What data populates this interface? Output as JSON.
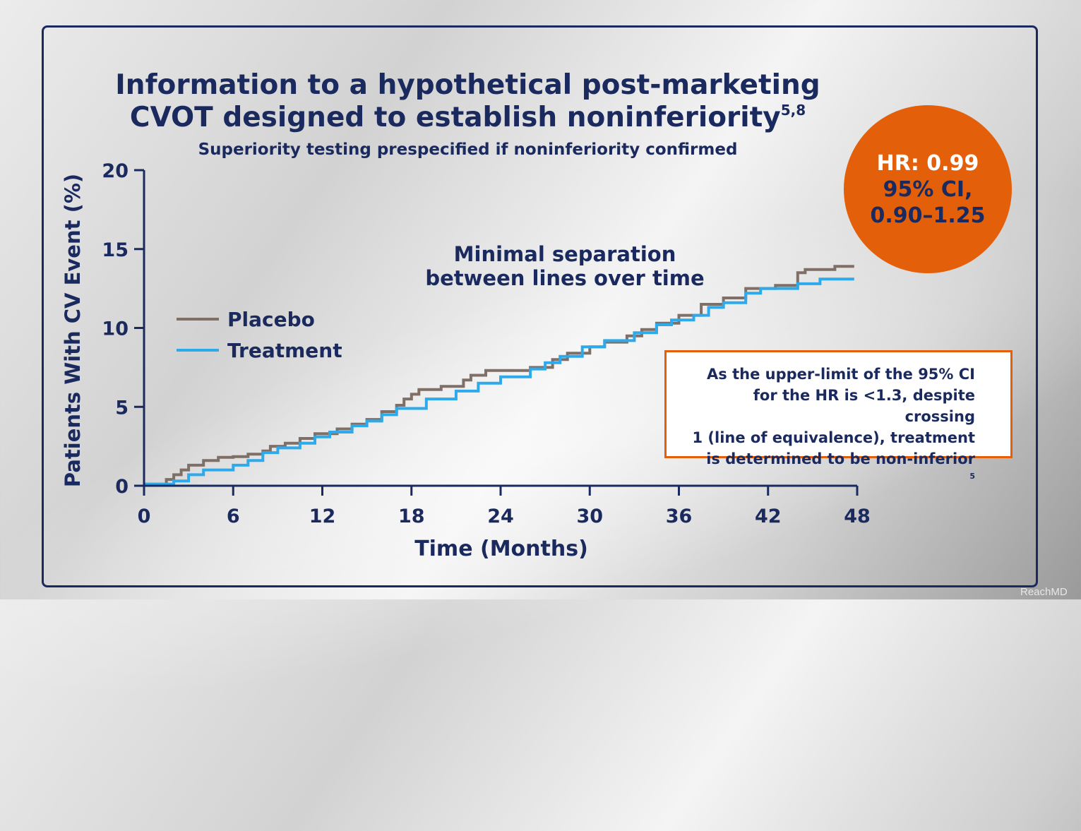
{
  "title": {
    "line1": "Information to a hypothetical post-marketing",
    "line2": "CVOT designed to establish noninferiority",
    "line2_sup": "5,8"
  },
  "subtitle": "Superiority testing prespecified if noninferiority confirmed",
  "annotation": {
    "line1": "Minimal separation",
    "line2": "between lines over time"
  },
  "hr_badge": {
    "line1": "HR: 0.99",
    "line2": "95% CI,",
    "line3": "0.90–1.25",
    "color": "#e35f0a",
    "text_color": "#1b2a5e"
  },
  "note": {
    "line1": "As the upper-limit of the 95% CI",
    "line2": "for the HR is <1.3, despite crossing",
    "line3": "1 (line of equivalence), treatment",
    "line4": "is determined to be non-inferior",
    "line4_sup": "5"
  },
  "watermark": "ReachMD",
  "colors": {
    "navy": "#1b2a5e",
    "accent_orange": "#e35f0a",
    "placebo": "#7f6f67",
    "treatment": "#2eaaeb"
  },
  "chart_data": {
    "type": "line",
    "step": true,
    "xlabel": "Time (Months)",
    "ylabel": "Patients With CV Event (%)",
    "xlim": [
      0,
      48
    ],
    "ylim": [
      0,
      20
    ],
    "xticks": [
      "0",
      "6",
      "12",
      "18",
      "24",
      "30",
      "36",
      "42",
      "48"
    ],
    "yticks": [
      "0",
      "5",
      "10",
      "15",
      "20"
    ],
    "legend_position": "left",
    "series": [
      {
        "name": "Placebo",
        "color": "#7f6f67",
        "points": [
          [
            0,
            0.1
          ],
          [
            1.5,
            0.1
          ],
          [
            1.5,
            0.4
          ],
          [
            2.0,
            0.4
          ],
          [
            2.0,
            0.7
          ],
          [
            2.5,
            0.7
          ],
          [
            2.5,
            1.0
          ],
          [
            3.0,
            1.0
          ],
          [
            3.0,
            1.3
          ],
          [
            4.0,
            1.3
          ],
          [
            4.0,
            1.6
          ],
          [
            5.0,
            1.6
          ],
          [
            5.0,
            1.8
          ],
          [
            6.0,
            1.8
          ],
          [
            6.0,
            1.85
          ],
          [
            7.0,
            1.85
          ],
          [
            7.0,
            2.0
          ],
          [
            8.0,
            2.0
          ],
          [
            8.0,
            2.2
          ],
          [
            8.5,
            2.2
          ],
          [
            8.5,
            2.5
          ],
          [
            9.5,
            2.5
          ],
          [
            9.5,
            2.7
          ],
          [
            10.5,
            2.7
          ],
          [
            10.5,
            3.0
          ],
          [
            11.5,
            3.0
          ],
          [
            11.5,
            3.3
          ],
          [
            13.0,
            3.3
          ],
          [
            13.0,
            3.6
          ],
          [
            14.0,
            3.6
          ],
          [
            14.0,
            3.9
          ],
          [
            15.0,
            3.9
          ],
          [
            15.0,
            4.2
          ],
          [
            16.0,
            4.2
          ],
          [
            16.0,
            4.7
          ],
          [
            17.0,
            4.7
          ],
          [
            17.0,
            5.1
          ],
          [
            17.5,
            5.1
          ],
          [
            17.5,
            5.5
          ],
          [
            18.0,
            5.5
          ],
          [
            18.0,
            5.8
          ],
          [
            18.5,
            5.8
          ],
          [
            18.5,
            6.1
          ],
          [
            20.0,
            6.1
          ],
          [
            20.0,
            6.3
          ],
          [
            21.5,
            6.3
          ],
          [
            21.5,
            6.7
          ],
          [
            22.0,
            6.7
          ],
          [
            22.0,
            7.0
          ],
          [
            23.0,
            7.0
          ],
          [
            23.0,
            7.3
          ],
          [
            26.0,
            7.3
          ],
          [
            26.0,
            7.5
          ],
          [
            27.5,
            7.5
          ],
          [
            27.5,
            8.0
          ],
          [
            28.5,
            8.0
          ],
          [
            28.5,
            8.4
          ],
          [
            30.0,
            8.4
          ],
          [
            30.0,
            8.8
          ],
          [
            31.0,
            8.8
          ],
          [
            31.0,
            9.1
          ],
          [
            32.5,
            9.1
          ],
          [
            32.5,
            9.5
          ],
          [
            33.5,
            9.5
          ],
          [
            33.5,
            9.9
          ],
          [
            34.5,
            9.9
          ],
          [
            34.5,
            10.3
          ],
          [
            36.0,
            10.3
          ],
          [
            36.0,
            10.8
          ],
          [
            37.5,
            10.8
          ],
          [
            37.5,
            11.5
          ],
          [
            39.0,
            11.5
          ],
          [
            39.0,
            11.9
          ],
          [
            40.5,
            11.9
          ],
          [
            40.5,
            12.5
          ],
          [
            42.5,
            12.5
          ],
          [
            42.5,
            12.7
          ],
          [
            44.0,
            12.7
          ],
          [
            44.0,
            13.5
          ],
          [
            44.5,
            13.5
          ],
          [
            44.5,
            13.7
          ],
          [
            46.5,
            13.7
          ],
          [
            46.5,
            13.9
          ],
          [
            47.8,
            13.9
          ]
        ]
      },
      {
        "name": "Treatment",
        "color": "#2eaaeb",
        "points": [
          [
            0,
            0.1
          ],
          [
            2.0,
            0.1
          ],
          [
            2.0,
            0.3
          ],
          [
            3.0,
            0.3
          ],
          [
            3.0,
            0.7
          ],
          [
            4.0,
            0.7
          ],
          [
            4.0,
            1.0
          ],
          [
            6.0,
            1.0
          ],
          [
            6.0,
            1.3
          ],
          [
            7.0,
            1.3
          ],
          [
            7.0,
            1.6
          ],
          [
            8.0,
            1.6
          ],
          [
            8.0,
            2.1
          ],
          [
            9.0,
            2.1
          ],
          [
            9.0,
            2.4
          ],
          [
            10.5,
            2.4
          ],
          [
            10.5,
            2.7
          ],
          [
            11.5,
            2.7
          ],
          [
            11.5,
            3.1
          ],
          [
            12.5,
            3.1
          ],
          [
            12.5,
            3.4
          ],
          [
            14.0,
            3.4
          ],
          [
            14.0,
            3.8
          ],
          [
            15.0,
            3.8
          ],
          [
            15.0,
            4.1
          ],
          [
            16.0,
            4.1
          ],
          [
            16.0,
            4.5
          ],
          [
            17.0,
            4.5
          ],
          [
            17.0,
            4.9
          ],
          [
            19.0,
            4.9
          ],
          [
            19.0,
            5.5
          ],
          [
            21.0,
            5.5
          ],
          [
            21.0,
            6.0
          ],
          [
            22.5,
            6.0
          ],
          [
            22.5,
            6.5
          ],
          [
            24.0,
            6.5
          ],
          [
            24.0,
            6.9
          ],
          [
            26.0,
            6.9
          ],
          [
            26.0,
            7.4
          ],
          [
            27.0,
            7.4
          ],
          [
            27.0,
            7.8
          ],
          [
            28.0,
            7.8
          ],
          [
            28.0,
            8.2
          ],
          [
            29.5,
            8.2
          ],
          [
            29.5,
            8.8
          ],
          [
            31.0,
            8.8
          ],
          [
            31.0,
            9.2
          ],
          [
            33.0,
            9.2
          ],
          [
            33.0,
            9.7
          ],
          [
            34.5,
            9.7
          ],
          [
            34.5,
            10.2
          ],
          [
            35.5,
            10.2
          ],
          [
            35.5,
            10.5
          ],
          [
            37.0,
            10.5
          ],
          [
            37.0,
            10.8
          ],
          [
            38.0,
            10.8
          ],
          [
            38.0,
            11.3
          ],
          [
            39.0,
            11.3
          ],
          [
            39.0,
            11.6
          ],
          [
            40.5,
            11.6
          ],
          [
            40.5,
            12.2
          ],
          [
            41.5,
            12.2
          ],
          [
            41.5,
            12.5
          ],
          [
            44.0,
            12.5
          ],
          [
            44.0,
            12.8
          ],
          [
            45.5,
            12.8
          ],
          [
            45.5,
            13.1
          ],
          [
            47.8,
            13.1
          ]
        ]
      }
    ]
  }
}
